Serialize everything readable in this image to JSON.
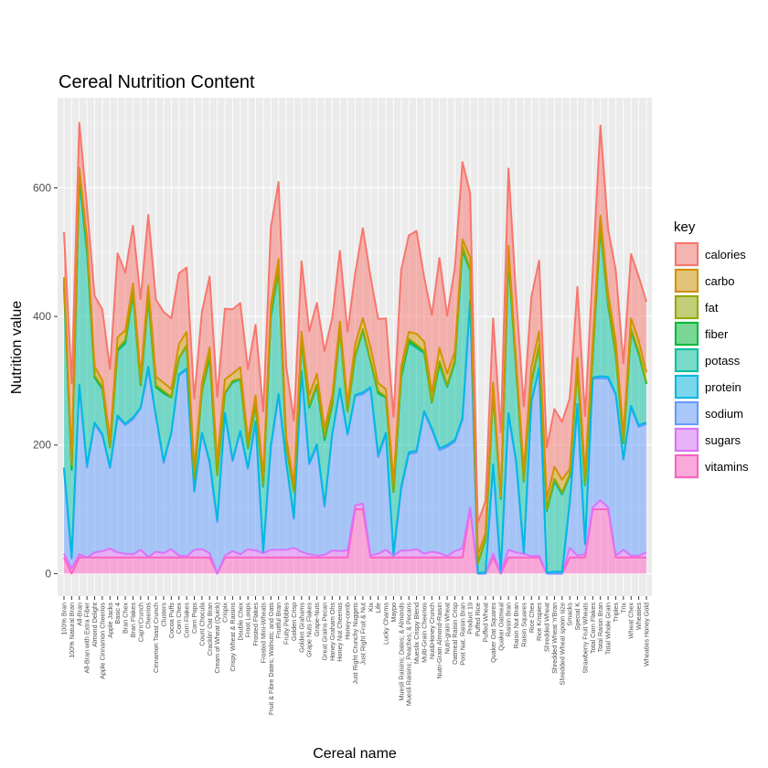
{
  "chart_data": {
    "type": "area",
    "title": "Cereal Nutrition Content",
    "xlabel": "Cereal name",
    "ylabel": "Nutrition value",
    "ylim": [
      -35,
      740
    ],
    "yticks": [
      0,
      200,
      400,
      600
    ],
    "legend_title": "key",
    "legend_position": "right",
    "grid": true,
    "stacked": true,
    "categories": [
      "100% Bran",
      "100% Natural Bran",
      "All-Bran",
      "All-Bran with Extra Fiber",
      "Almond Delight",
      "Apple Cinnamon Cheerios",
      "Apple Jacks",
      "Basic 4",
      "Bran Chex",
      "Bran Flakes",
      "Cap'n'Crunch",
      "Cheerios",
      "Cinnamon Toast Crunch",
      "Clusters",
      "Cocoa Puffs",
      "Corn Chex",
      "Corn Flakes",
      "Corn Pops",
      "Count Chocula",
      "Cracklin' Oat Bran",
      "Cream of Wheat (Quick)",
      "Crispix",
      "Crispy Wheat & Raisins",
      "Double Chex",
      "Froot Loops",
      "Frosted Flakes",
      "Frosted Mini-Wheats",
      "Fruit & Fibre Dates; Walnuts; and Oats",
      "Fruitful Bran",
      "Fruity Pebbles",
      "Golden Crisp",
      "Golden Grahams",
      "Grape Nuts Flakes",
      "Grape-Nuts",
      "Great Grains Pecan",
      "Honey Graham Ohs",
      "Honey Nut Cheerios",
      "Honey-comb",
      "Just Right Crunchy Nuggets",
      "Just Right Fruit & Nut",
      "Kix",
      "Life",
      "Lucky Charms",
      "Maypo",
      "Muesli Raisins; Dates; & Almonds",
      "Muesli Raisins; Peaches; & Pecans",
      "Mueslix Crispy Blend",
      "Multi-Grain Cheerios",
      "Nut&Honey Crunch",
      "Nutri-Grain Almond-Raisin",
      "Nutri-grain Wheat",
      "Oatmeal Raisin Crisp",
      "Post Nat. Raisin Bran",
      "Product 19",
      "Puffed Rice",
      "Puffed Wheat",
      "Quaker Oat Squares",
      "Quaker Oatmeal",
      "Raisin Bran",
      "Raisin Nut Bran",
      "Raisin Squares",
      "Rice Chex",
      "Rice Krispies",
      "Shredded Wheat",
      "Shredded Wheat 'n'Bran",
      "Shredded Wheat spoon size",
      "Smacks",
      "Special K",
      "Strawberry Fruit Wheats",
      "Total Corn Flakes",
      "Total Raisin Bran",
      "Total Whole Grain",
      "Triples",
      "Trix",
      "Wheat Chex",
      "Wheaties",
      "Wheaties Honey Gold"
    ],
    "series": [
      {
        "name": "vitamins",
        "color": "#ff61c3",
        "values": [
          25,
          0,
          25,
          25,
          25,
          25,
          25,
          25,
          25,
          25,
          25,
          25,
          25,
          25,
          25,
          25,
          25,
          25,
          25,
          25,
          0,
          25,
          25,
          25,
          25,
          25,
          25,
          25,
          25,
          25,
          25,
          25,
          25,
          25,
          25,
          25,
          25,
          25,
          100,
          100,
          25,
          25,
          25,
          25,
          25,
          25,
          25,
          25,
          25,
          25,
          25,
          25,
          25,
          100,
          0,
          0,
          25,
          0,
          25,
          25,
          25,
          25,
          25,
          0,
          0,
          0,
          25,
          25,
          25,
          100,
          100,
          100,
          25,
          25,
          25,
          25,
          25
        ]
      },
      {
        "name": "sugars",
        "color": "#db72fb",
        "values": [
          6,
          8,
          5,
          0,
          8,
          10,
          14,
          8,
          6,
          5,
          12,
          1,
          9,
          7,
          13,
          3,
          2,
          12,
          13,
          7,
          0,
          3,
          10,
          5,
          13,
          11,
          7,
          12,
          12,
          12,
          15,
          9,
          5,
          3,
          4,
          11,
          10,
          11,
          6,
          9,
          3,
          6,
          12,
          3,
          11,
          11,
          13,
          6,
          9,
          7,
          2,
          10,
          14,
          3,
          0,
          0,
          6,
          1,
          12,
          8,
          6,
          2,
          3,
          0,
          0,
          0,
          15,
          3,
          5,
          3,
          14,
          3,
          3,
          12,
          3,
          3,
          8
        ]
      },
      {
        "name": "sodium",
        "color": "#619cff",
        "values": [
          130,
          15,
          260,
          140,
          200,
          180,
          125,
          210,
          200,
          210,
          220,
          290,
          210,
          140,
          180,
          280,
          290,
          90,
          180,
          140,
          80,
          220,
          140,
          190,
          125,
          200,
          0,
          160,
          240,
          135,
          45,
          280,
          140,
          170,
          75,
          180,
          250,
          180,
          170,
          170,
          260,
          150,
          180,
          0,
          95,
          150,
          150,
          220,
          190,
          160,
          170,
          170,
          200,
          320,
          0,
          0,
          135,
          0,
          210,
          140,
          0,
          240,
          290,
          0,
          0,
          0,
          70,
          230,
          15,
          200,
          190,
          200,
          250,
          140,
          230,
          200,
          200
        ]
      },
      {
        "name": "protein",
        "color": "#00b9e3",
        "values": [
          4,
          3,
          4,
          4,
          2,
          2,
          2,
          3,
          2,
          3,
          1,
          6,
          1,
          3,
          1,
          2,
          2,
          1,
          1,
          3,
          3,
          2,
          2,
          2,
          2,
          1,
          3,
          3,
          3,
          1,
          2,
          1,
          3,
          3,
          3,
          1,
          3,
          1,
          2,
          3,
          2,
          4,
          2,
          4,
          4,
          3,
          3,
          2,
          2,
          3,
          3,
          3,
          3,
          3,
          1,
          2,
          4,
          5,
          3,
          3,
          2,
          1,
          2,
          2,
          3,
          3,
          2,
          6,
          2,
          2,
          3,
          3,
          2,
          1,
          3,
          3,
          2
        ]
      },
      {
        "name": "potass",
        "color": "#00c19f",
        "values": [
          280,
          135,
          320,
          330,
          70,
          70,
          30,
          100,
          125,
          190,
          35,
          105,
          45,
          105,
          55,
          25,
          35,
          20,
          65,
          160,
          70,
          30,
          120,
          80,
          30,
          25,
          100,
          200,
          190,
          25,
          40,
          45,
          85,
          90,
          100,
          45,
          90,
          35,
          60,
          95,
          40,
          95,
          55,
          95,
          170,
          170,
          160,
          90,
          40,
          130,
          90,
          120,
          260,
          45,
          15,
          50,
          110,
          110,
          240,
          140,
          110,
          30,
          35,
          95,
          140,
          120,
          40,
          55,
          90,
          35,
          230,
          110,
          60,
          25,
          115,
          110,
          60
        ]
      },
      {
        "name": "fiber",
        "color": "#00ba38",
        "values": [
          10,
          2,
          9,
          14,
          1,
          1.5,
          1,
          2,
          4,
          5,
          0,
          2,
          0,
          2,
          0,
          0,
          1,
          1,
          0,
          4,
          1,
          1,
          2,
          1,
          1,
          1,
          3,
          5,
          5,
          0,
          0,
          0,
          3,
          3,
          3,
          1,
          1.5,
          0,
          1,
          2,
          0,
          2,
          0,
          0,
          3,
          3,
          3,
          2,
          0,
          3,
          3,
          1.5,
          6,
          1,
          0,
          1,
          2,
          2.7,
          5,
          2.5,
          2,
          0,
          0,
          3,
          4,
          3,
          1,
          1,
          3,
          0,
          4,
          3,
          0,
          0,
          3,
          3,
          1
        ]
      },
      {
        "name": "fat",
        "color": "#93aa00",
        "values": [
          1,
          5,
          1,
          0,
          2,
          2,
          0,
          2,
          1,
          0,
          2,
          2,
          3,
          2,
          1,
          0,
          0,
          0,
          1,
          3,
          0,
          0,
          1,
          0,
          1,
          0,
          0,
          2,
          0,
          1,
          0,
          1,
          1,
          0,
          3,
          2,
          1,
          0,
          1,
          1,
          1,
          2,
          1,
          1,
          3,
          3,
          2,
          1,
          1,
          2,
          0,
          2,
          1,
          0,
          0,
          0,
          1,
          2,
          1,
          2,
          0,
          0,
          0,
          0,
          0,
          0,
          1,
          0,
          0,
          1,
          1,
          1,
          1,
          1,
          1,
          1,
          1
        ]
      },
      {
        "name": "carbo",
        "color": "#d39200",
        "values": [
          5,
          8,
          7,
          8,
          14,
          10.5,
          11,
          18,
          15,
          13,
          12,
          17,
          13,
          13,
          12,
          22,
          21,
          13,
          12,
          10,
          21,
          21,
          11,
          18,
          11,
          14,
          14,
          12,
          14,
          13,
          11,
          15,
          15,
          17,
          13,
          12,
          11.5,
          14,
          17,
          17,
          21,
          12,
          12,
          16,
          11,
          11,
          17,
          15,
          15,
          21,
          18,
          13.5,
          11,
          20,
          13,
          10,
          14,
          -1,
          14,
          10.5,
          15,
          23,
          22,
          16,
          19,
          20,
          9,
          16,
          15,
          21,
          15,
          16,
          21,
          13,
          17,
          17,
          16
        ]
      },
      {
        "name": "calories",
        "color": "#f8766d",
        "values": [
          70,
          120,
          70,
          50,
          110,
          110,
          110,
          130,
          90,
          90,
          120,
          110,
          120,
          110,
          110,
          110,
          100,
          110,
          110,
          110,
          100,
          110,
          100,
          100,
          110,
          110,
          100,
          120,
          120,
          110,
          100,
          110,
          100,
          110,
          120,
          120,
          110,
          110,
          110,
          140,
          110,
          100,
          110,
          100,
          150,
          150,
          160,
          100,
          120,
          140,
          90,
          130,
          120,
          100,
          50,
          50,
          100,
          100,
          120,
          100,
          100,
          110,
          110,
          80,
          90,
          90,
          110,
          110,
          90,
          110,
          140,
          100,
          110,
          110,
          100,
          100,
          110
        ]
      }
    ]
  }
}
